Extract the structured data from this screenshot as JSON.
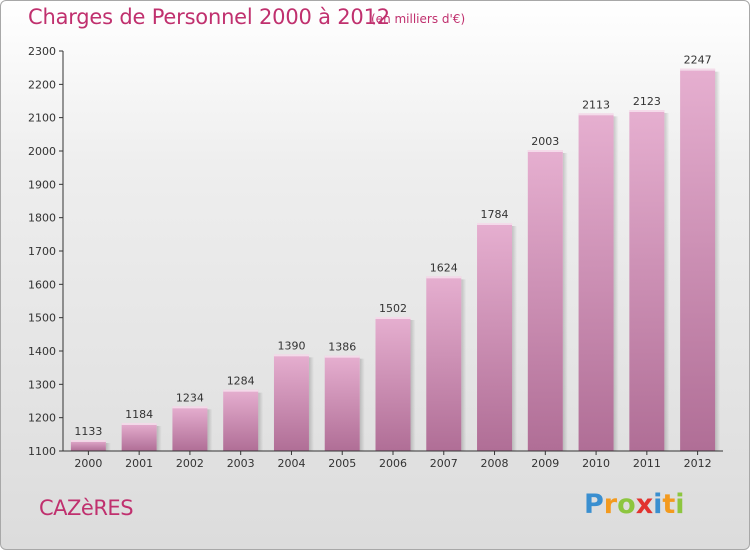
{
  "header": {
    "title": "Charges de Personnel 2000 à 2012",
    "unit": "(en milliers d'€)"
  },
  "footer": {
    "town": "CAZèRES",
    "logo_letters": [
      "P",
      "r",
      "o",
      "x",
      "i",
      "t",
      "i"
    ]
  },
  "colors": {
    "bar_top": "#e6afd0",
    "bar_bottom": "#b06e96",
    "text_accent": "#c0306e",
    "axis": "#333333"
  },
  "chart_data": {
    "type": "bar",
    "title": "Charges de Personnel 2000 à 2012",
    "subtitle": "(en milliers d'€)",
    "xlabel": "",
    "ylabel": "",
    "categories": [
      "2000",
      "2001",
      "2002",
      "2003",
      "2004",
      "2005",
      "2006",
      "2007",
      "2008",
      "2009",
      "2010",
      "2011",
      "2012"
    ],
    "values": [
      1133,
      1184,
      1234,
      1284,
      1390,
      1386,
      1502,
      1624,
      1784,
      2003,
      2113,
      2123,
      2247
    ],
    "ylim": [
      1100,
      2300
    ],
    "yticks": [
      1100,
      1200,
      1300,
      1400,
      1500,
      1600,
      1700,
      1800,
      1900,
      2000,
      2100,
      2200,
      2300
    ],
    "grid": false,
    "legend": "none"
  }
}
